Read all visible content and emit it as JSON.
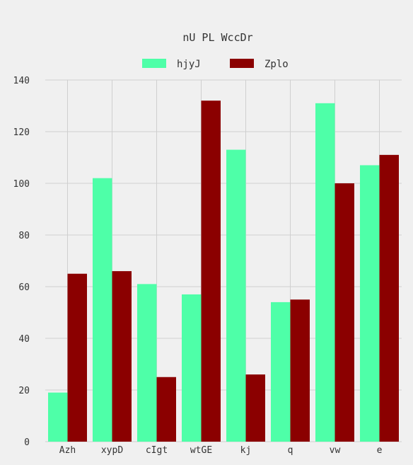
{
  "chart_data": {
    "type": "bar",
    "title": "nU PL WccDr",
    "xlabel": "",
    "ylabel": "",
    "categories": [
      "Azh",
      "xypD",
      "cIgt",
      "wtGE",
      "kj",
      "q",
      "vw",
      "e"
    ],
    "series": [
      {
        "name": "hjyJ",
        "color": "#4effa8",
        "values": [
          19,
          102,
          61,
          57,
          113,
          54,
          131,
          107
        ]
      },
      {
        "name": "Zplo",
        "color": "#8b0000",
        "values": [
          65,
          66,
          25,
          132,
          26,
          55,
          100,
          111
        ]
      }
    ],
    "ylim": [
      0,
      140
    ],
    "yticks": [
      0,
      20,
      40,
      60,
      80,
      100,
      120,
      140
    ],
    "grid": true,
    "legend_position": "top-center"
  }
}
